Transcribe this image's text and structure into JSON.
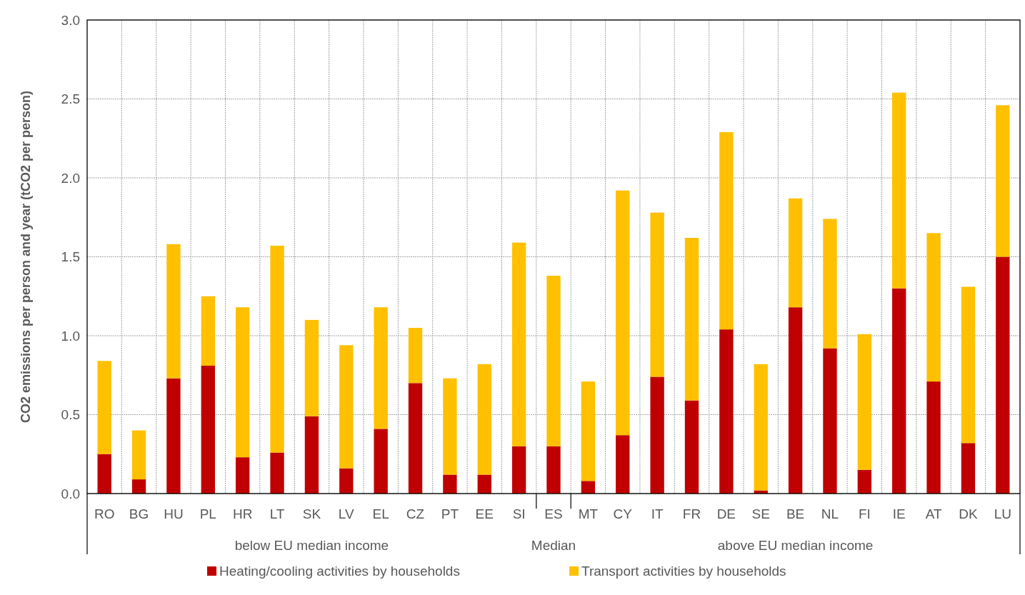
{
  "chart_data": {
    "type": "bar",
    "stacked": true,
    "ylabel": "CO2 emissions per person and year (tCO2 per person)",
    "categories": [
      "RO",
      "BG",
      "HU",
      "PL",
      "HR",
      "LT",
      "SK",
      "LV",
      "EL",
      "CZ",
      "PT",
      "EE",
      "SI",
      "ES",
      "MT",
      "CY",
      "IT",
      "FR",
      "DE",
      "SE",
      "BE",
      "NL",
      "FI",
      "IE",
      "AT",
      "DK",
      "LU"
    ],
    "series": [
      {
        "name": "Heating/cooling activities by households",
        "color": "#c00000",
        "values": [
          0.25,
          0.09,
          0.73,
          0.81,
          0.23,
          0.26,
          0.49,
          0.16,
          0.41,
          0.7,
          0.12,
          0.12,
          0.3,
          0.3,
          0.08,
          0.37,
          0.74,
          0.59,
          1.04,
          0.02,
          1.18,
          0.92,
          0.15,
          1.3,
          0.71,
          0.32,
          1.5
        ]
      },
      {
        "name": "Transport activities by households",
        "color": "#ffc000",
        "values": [
          0.59,
          0.31,
          0.85,
          0.44,
          0.95,
          1.31,
          0.61,
          0.78,
          0.77,
          0.35,
          0.61,
          0.7,
          1.29,
          1.08,
          0.63,
          1.55,
          1.04,
          1.03,
          1.25,
          0.8,
          0.69,
          0.82,
          0.86,
          1.24,
          0.94,
          0.99,
          0.96
        ]
      }
    ],
    "ylim": [
      0,
      3
    ],
    "yticks": [
      {
        "value": 0,
        "label": "0.0"
      },
      {
        "value": 0.5,
        "label": "0.5"
      },
      {
        "value": 1,
        "label": "1.0"
      },
      {
        "value": 1.5,
        "label": "1.5"
      },
      {
        "value": 2,
        "label": "2.0"
      },
      {
        "value": 2.5,
        "label": "2.5"
      },
      {
        "value": 3,
        "label": "3.0"
      }
    ],
    "grid": true,
    "legend": "bottom",
    "annotations": [
      "below EU median income",
      "Median",
      "above EU median income"
    ]
  }
}
